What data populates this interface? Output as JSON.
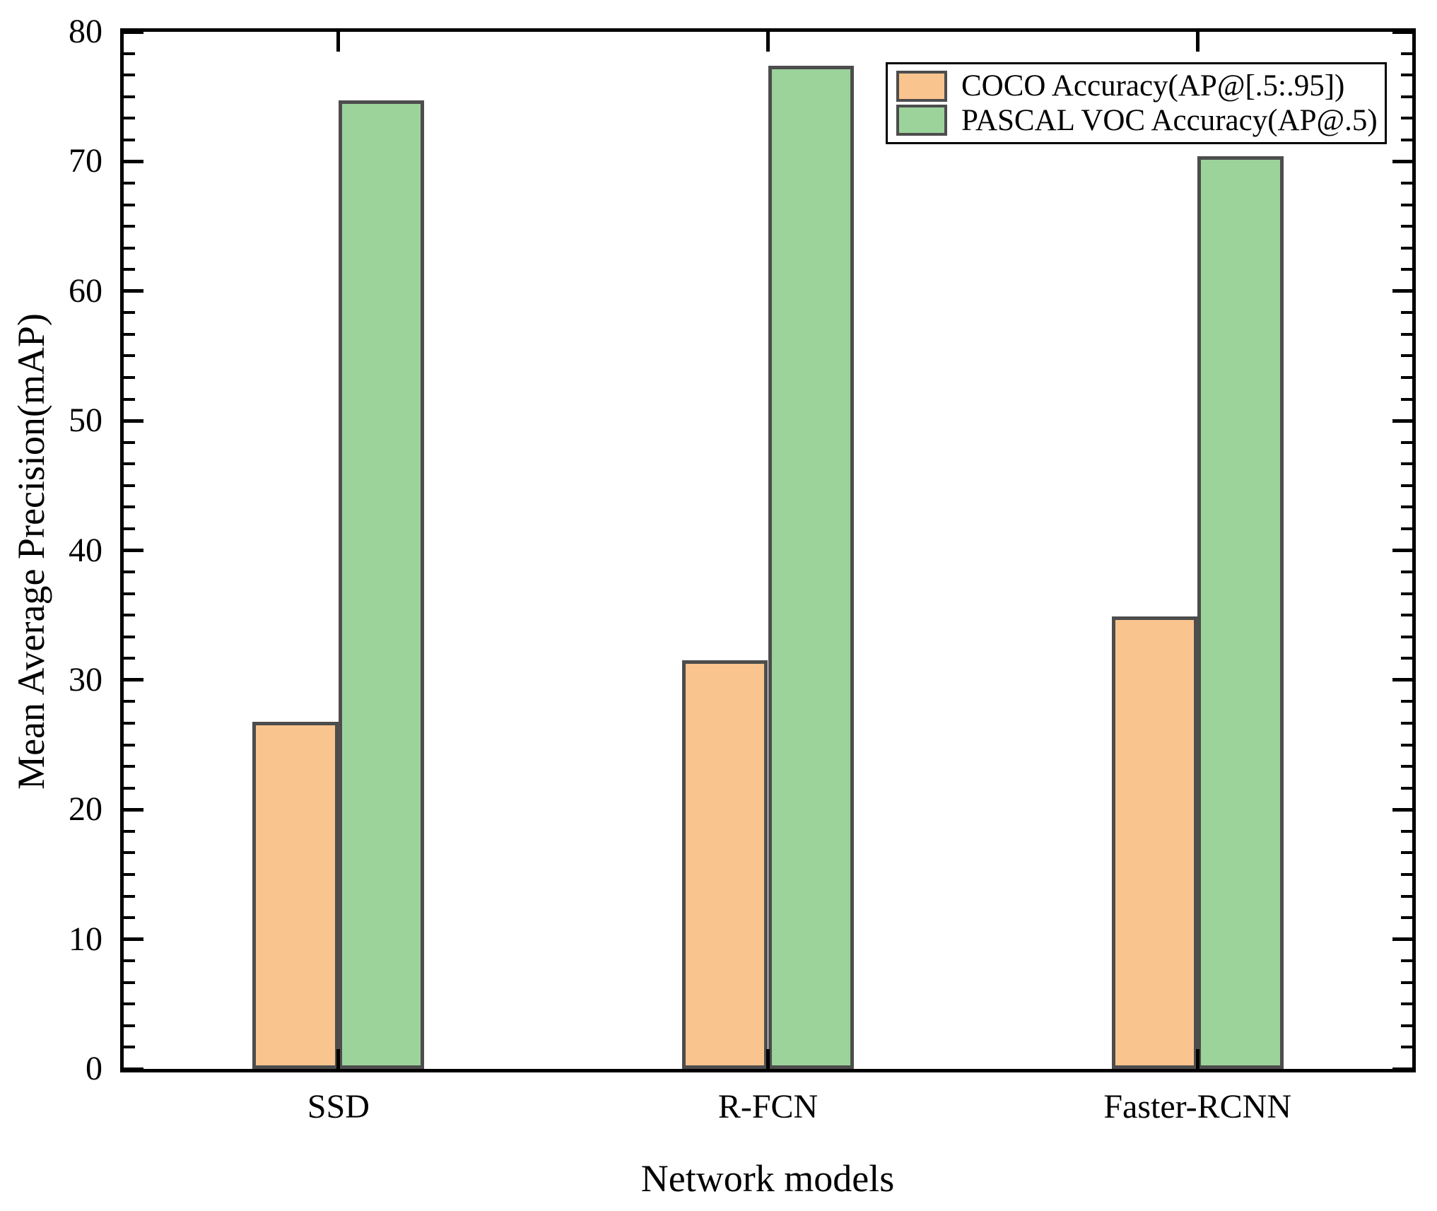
{
  "chart_data": {
    "type": "bar",
    "title": "",
    "xlabel": "Network models",
    "ylabel": "Mean Average Precision(mAP)",
    "categories": [
      "SSD",
      "R-FCN",
      "Faster-RCNN"
    ],
    "series": [
      {
        "name": "COCO Accuracy(AP@[.5:.95])",
        "color": "#FAC48E",
        "values": [
          26.8,
          31.5,
          34.9
        ]
      },
      {
        "name": "PASCAL VOC Accuracy(AP@.5)",
        "color": "#9CD39B",
        "values": [
          74.7,
          77.4,
          70.4
        ]
      }
    ],
    "ylim": [
      0,
      80
    ],
    "y_major_step": 10,
    "y_minor_ticks_between_majors": 5,
    "y_tick_labels": [
      "0",
      "10",
      "20",
      "30",
      "40",
      "50",
      "60",
      "70",
      "80"
    ],
    "bar_edge_color": "#4d4d4d",
    "axis_color": "#000000",
    "legend_position": "upper right",
    "grid": false
  }
}
